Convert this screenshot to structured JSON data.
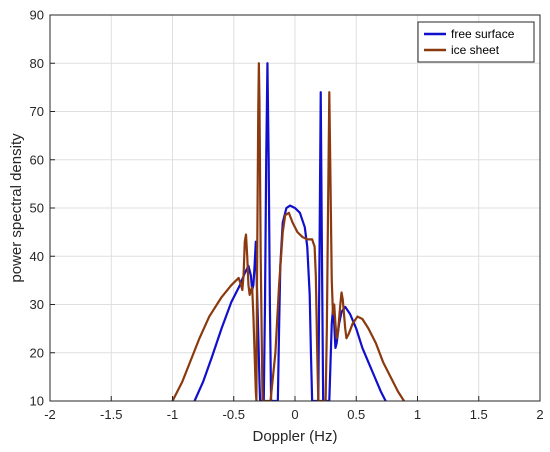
{
  "chart_data": {
    "type": "line",
    "title": "",
    "xlabel": "Doppler (Hz)",
    "ylabel": "power spectral density",
    "xlim": [
      -2,
      2
    ],
    "ylim": [
      10,
      90
    ],
    "xticks": [
      -2,
      -1.5,
      -1,
      -0.5,
      0,
      0.5,
      1,
      1.5,
      2
    ],
    "yticks": [
      10,
      20,
      30,
      40,
      50,
      60,
      70,
      80,
      90
    ],
    "grid": true,
    "legend_position": "top-right",
    "series": [
      {
        "name": "free surface",
        "color": "#1010cc",
        "points": [
          [
            -0.82,
            10
          ],
          [
            -0.75,
            14
          ],
          [
            -0.68,
            19
          ],
          [
            -0.6,
            25
          ],
          [
            -0.52,
            30.5
          ],
          [
            -0.45,
            34
          ],
          [
            -0.41,
            36.5
          ],
          [
            -0.38,
            38
          ],
          [
            -0.36,
            36
          ],
          [
            -0.35,
            33
          ],
          [
            -0.34,
            34
          ],
          [
            -0.33,
            38
          ],
          [
            -0.32,
            43
          ],
          [
            -0.31,
            33
          ],
          [
            -0.3,
            24
          ],
          [
            -0.29,
            14
          ],
          [
            -0.285,
            10
          ],
          [
            -0.255,
            10
          ],
          [
            -0.245,
            30
          ],
          [
            -0.235,
            60
          ],
          [
            -0.225,
            80
          ],
          [
            -0.215,
            60
          ],
          [
            -0.205,
            30
          ],
          [
            -0.195,
            10
          ],
          [
            -0.14,
            10
          ],
          [
            -0.13,
            25
          ],
          [
            -0.12,
            38
          ],
          [
            -0.1,
            47
          ],
          [
            -0.07,
            50
          ],
          [
            -0.04,
            50.5
          ],
          [
            0,
            50
          ],
          [
            0.04,
            49
          ],
          [
            0.08,
            46
          ],
          [
            0.1,
            42
          ],
          [
            0.12,
            32
          ],
          [
            0.13,
            20
          ],
          [
            0.14,
            10
          ],
          [
            0.19,
            10
          ],
          [
            0.2,
            40
          ],
          [
            0.21,
            74
          ],
          [
            0.22,
            40
          ],
          [
            0.23,
            10
          ],
          [
            0.28,
            10
          ],
          [
            0.29,
            18
          ],
          [
            0.3,
            26
          ],
          [
            0.31,
            29
          ],
          [
            0.32,
            26
          ],
          [
            0.33,
            21
          ],
          [
            0.34,
            22
          ],
          [
            0.36,
            26
          ],
          [
            0.38,
            28.5
          ],
          [
            0.41,
            29.5
          ],
          [
            0.45,
            28
          ],
          [
            0.5,
            25
          ],
          [
            0.55,
            21
          ],
          [
            0.6,
            18
          ],
          [
            0.65,
            15
          ],
          [
            0.7,
            12
          ],
          [
            0.74,
            10
          ]
        ]
      },
      {
        "name": "ice sheet",
        "color": "#8b3a0f",
        "points": [
          [
            -1.0,
            10
          ],
          [
            -0.92,
            14
          ],
          [
            -0.85,
            18.5
          ],
          [
            -0.78,
            23
          ],
          [
            -0.7,
            27.5
          ],
          [
            -0.6,
            31.5
          ],
          [
            -0.52,
            34
          ],
          [
            -0.46,
            35.5
          ],
          [
            -0.44,
            34
          ],
          [
            -0.43,
            33
          ],
          [
            -0.42,
            36
          ],
          [
            -0.41,
            43
          ],
          [
            -0.4,
            44.5
          ],
          [
            -0.39,
            40
          ],
          [
            -0.38,
            34
          ],
          [
            -0.37,
            32
          ],
          [
            -0.36,
            33
          ],
          [
            -0.35,
            33.5
          ],
          [
            -0.34,
            28
          ],
          [
            -0.33,
            20
          ],
          [
            -0.32,
            12
          ],
          [
            -0.315,
            10
          ],
          [
            -0.31,
            35
          ],
          [
            -0.3,
            70
          ],
          [
            -0.295,
            80
          ],
          [
            -0.29,
            72
          ],
          [
            -0.28,
            40
          ],
          [
            -0.27,
            20
          ],
          [
            -0.265,
            10
          ],
          [
            -0.2,
            10
          ],
          [
            -0.16,
            20
          ],
          [
            -0.13,
            34
          ],
          [
            -0.1,
            45
          ],
          [
            -0.08,
            48.5
          ],
          [
            -0.05,
            49
          ],
          [
            -0.02,
            47
          ],
          [
            0.02,
            45
          ],
          [
            0.06,
            44
          ],
          [
            0.1,
            43.5
          ],
          [
            0.14,
            43.5
          ],
          [
            0.16,
            42
          ],
          [
            0.17,
            36
          ],
          [
            0.18,
            22
          ],
          [
            0.19,
            10
          ],
          [
            0.25,
            10
          ],
          [
            0.26,
            25
          ],
          [
            0.27,
            50
          ],
          [
            0.28,
            74
          ],
          [
            0.29,
            55
          ],
          [
            0.3,
            35
          ],
          [
            0.31,
            28
          ],
          [
            0.32,
            30
          ],
          [
            0.33,
            26
          ],
          [
            0.34,
            23
          ],
          [
            0.35,
            24
          ],
          [
            0.36,
            27
          ],
          [
            0.37,
            30
          ],
          [
            0.38,
            32.5
          ],
          [
            0.39,
            31
          ],
          [
            0.4,
            28
          ],
          [
            0.41,
            25
          ],
          [
            0.42,
            23
          ],
          [
            0.44,
            24
          ],
          [
            0.47,
            26
          ],
          [
            0.51,
            27.5
          ],
          [
            0.55,
            27
          ],
          [
            0.6,
            25
          ],
          [
            0.66,
            22
          ],
          [
            0.72,
            18
          ],
          [
            0.78,
            15
          ],
          [
            0.84,
            12
          ],
          [
            0.89,
            10
          ]
        ]
      }
    ]
  }
}
